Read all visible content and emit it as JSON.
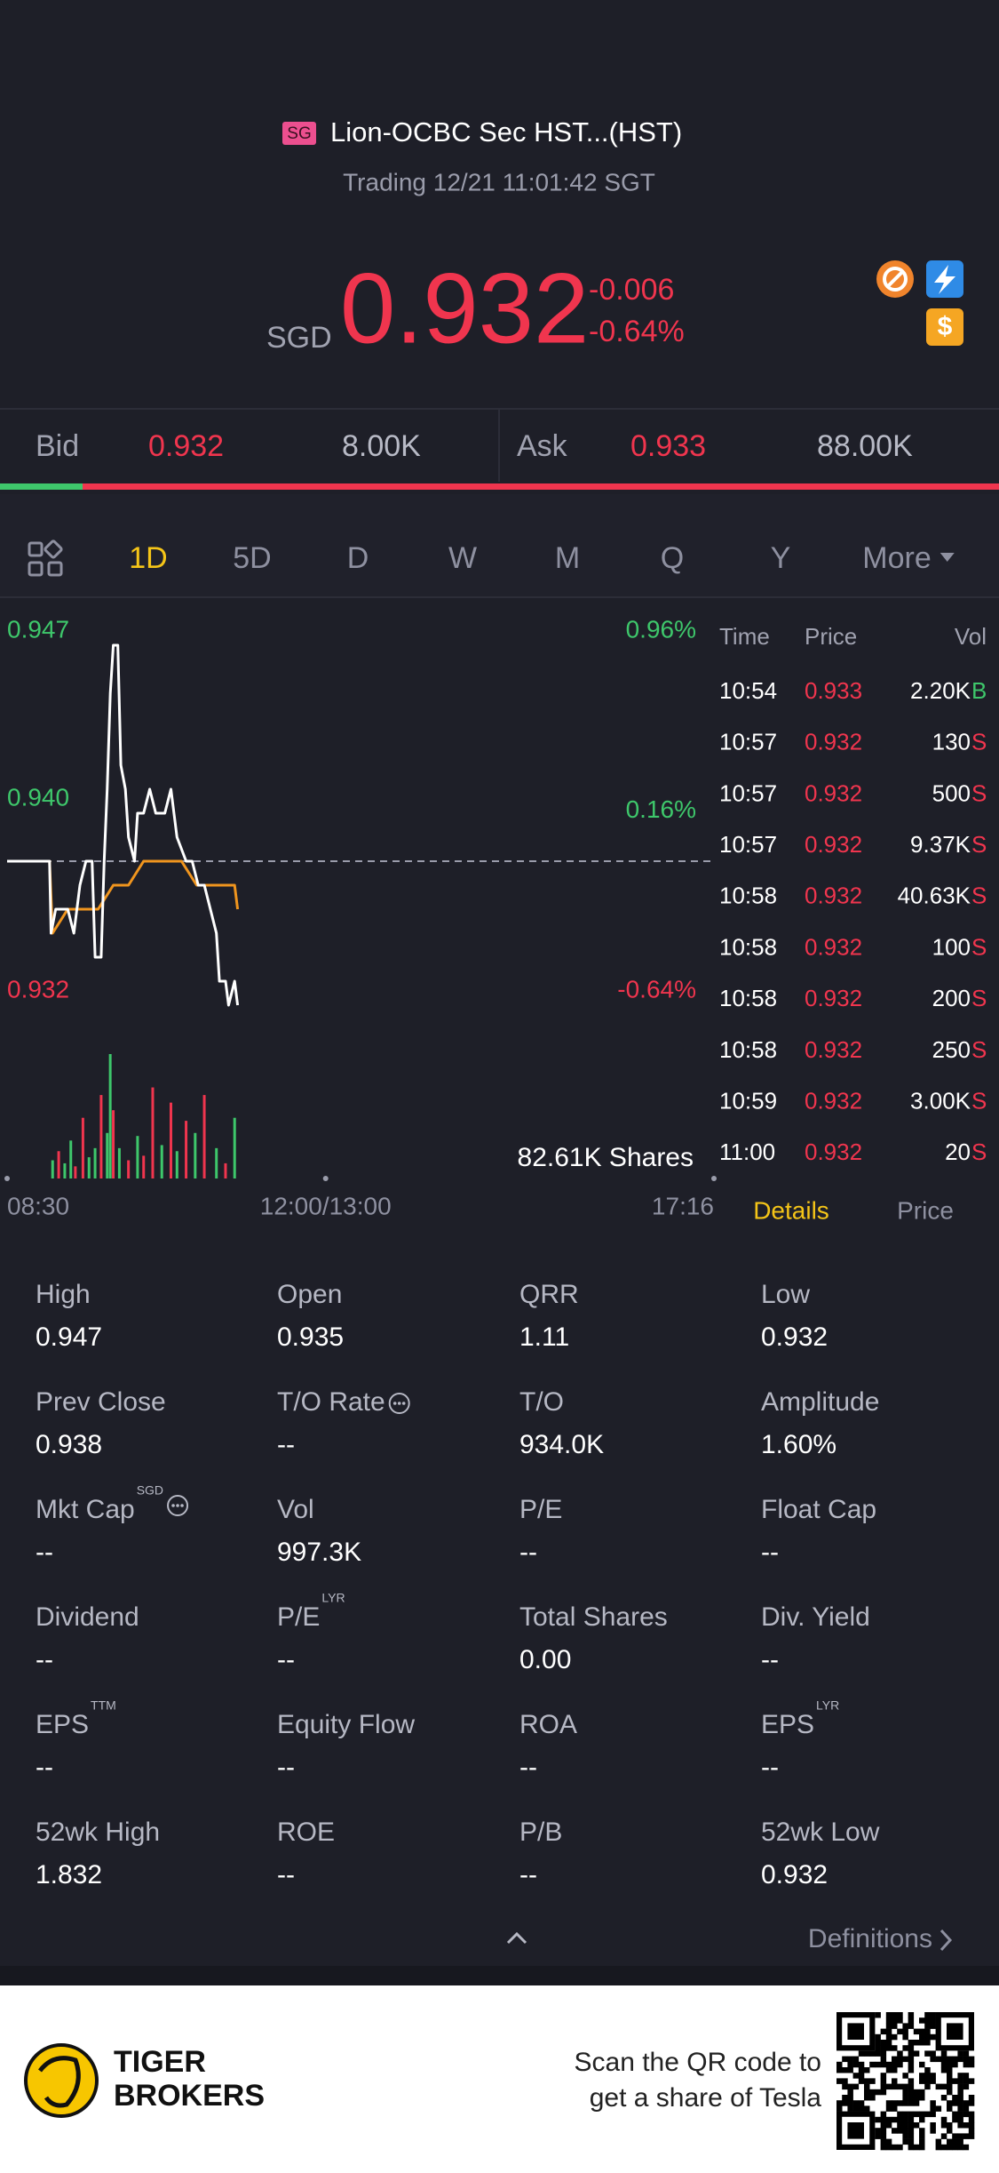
{
  "header": {
    "market_tag": "SG",
    "title": "Lion-OCBC Sec HST...(HST)",
    "status": "Trading 12/21 11:01:42 SGT"
  },
  "quote": {
    "currency": "SGD",
    "price": "0.932",
    "change": "-0.006",
    "change_pct": "-0.64%",
    "badge": "$"
  },
  "order_book": {
    "bid_label": "Bid",
    "bid_price": "0.932",
    "bid_size": "8.00K",
    "ask_label": "Ask",
    "ask_price": "0.933",
    "ask_size": "88.00K"
  },
  "tabs": {
    "items": [
      "1D",
      "5D",
      "D",
      "W",
      "M",
      "Q",
      "Y",
      "More"
    ],
    "active": 0
  },
  "chart_data": {
    "type": "line",
    "xlim": [
      0,
      466
    ],
    "xticks": [
      {
        "value": 0,
        "label": "08:30"
      },
      {
        "value": 210,
        "label": "12:00/13:00"
      },
      {
        "value": 466,
        "label": "17:16"
      }
    ],
    "ylim": [
      0.932,
      0.947
    ],
    "yticks": [
      0.947,
      {
        "value": 0.94,
        "label": "0.940"
      },
      0.932
    ],
    "y2lim": [
      -0.64,
      0.96
    ],
    "y2ticks": [
      {
        "value": 0.96,
        "label": "0.96%"
      },
      {
        "value": 0.16,
        "label": "0.16%"
      },
      {
        "value": -0.64,
        "label": "-0.64%"
      }
    ],
    "reference": 0.938,
    "up_color": "#3ec76b",
    "down_color": "#f0354e",
    "series": [
      {
        "color": "#ffffff",
        "x": [
          0,
          28,
          29,
          32,
          40,
          44,
          48,
          52,
          56,
          58,
          62,
          64,
          66,
          68,
          70,
          73,
          75,
          78,
          80,
          84,
          86,
          90,
          94,
          98,
          104,
          108,
          112,
          118,
          122,
          126,
          130,
          134,
          138,
          140,
          144,
          146,
          150,
          152
        ],
        "values": [
          0.938,
          0.938,
          0.935,
          0.936,
          0.936,
          0.935,
          0.937,
          0.938,
          0.938,
          0.934,
          0.934,
          0.938,
          0.941,
          0.945,
          0.947,
          0.947,
          0.942,
          0.941,
          0.939,
          0.938,
          0.94,
          0.94,
          0.941,
          0.94,
          0.94,
          0.941,
          0.939,
          0.938,
          0.938,
          0.937,
          0.937,
          0.936,
          0.935,
          0.933,
          0.933,
          0.932,
          0.933,
          0.932
        ]
      },
      {
        "color": "#f0951e",
        "x": [
          0,
          28,
          30,
          40,
          52,
          60,
          70,
          80,
          90,
          105,
          115,
          125,
          140,
          150,
          152
        ],
        "values": [
          0.938,
          0.938,
          0.935,
          0.936,
          0.936,
          0.936,
          0.937,
          0.937,
          0.938,
          0.938,
          0.938,
          0.937,
          0.937,
          0.937,
          0.936
        ]
      }
    ],
    "volume": {
      "x": [
        30,
        34,
        38,
        42,
        45,
        50,
        54,
        58,
        62,
        66,
        68,
        70,
        74,
        80,
        86,
        90,
        96,
        102,
        108,
        112,
        118,
        124,
        130,
        138,
        144,
        150
      ],
      "values": [
        12,
        18,
        10,
        25,
        8,
        40,
        14,
        20,
        55,
        30,
        82,
        45,
        20,
        12,
        28,
        15,
        60,
        22,
        50,
        18,
        38,
        30,
        55,
        20,
        10,
        40
      ],
      "colors": [
        "#3ec76b",
        "#f0354e",
        "#3ec76b",
        "#3ec76b",
        "#f0354e",
        "#f0354e",
        "#3ec76b",
        "#3ec76b",
        "#f0354e",
        "#3ec76b",
        "#3ec76b",
        "#f0354e",
        "#3ec76b",
        "#f0354e",
        "#3ec76b",
        "#f0354e",
        "#f0354e",
        "#3ec76b",
        "#f0354e",
        "#3ec76b",
        "#f0354e",
        "#3ec76b",
        "#f0354e",
        "#3ec76b",
        "#f0354e",
        "#3ec76b"
      ],
      "label": "82.61K Shares"
    }
  },
  "trades": {
    "columns": [
      "Time",
      "Price",
      "Vol"
    ],
    "price_color": "#f0354e",
    "side_colors": {
      "B": "#3ec76b",
      "S": "#f0354e"
    },
    "rows": [
      [
        "10:54",
        "0.933",
        "2.20K",
        "B"
      ],
      [
        "10:57",
        "0.932",
        "130",
        "S"
      ],
      [
        "10:57",
        "0.932",
        "500",
        "S"
      ],
      [
        "10:57",
        "0.932",
        "9.37K",
        "S"
      ],
      [
        "10:58",
        "0.932",
        "40.63K",
        "S"
      ],
      [
        "10:58",
        "0.932",
        "100",
        "S"
      ],
      [
        "10:58",
        "0.932",
        "200",
        "S"
      ],
      [
        "10:58",
        "0.932",
        "250",
        "S"
      ],
      [
        "10:59",
        "0.932",
        "3.00K",
        "S"
      ],
      [
        "11:00",
        "0.932",
        "20",
        "S"
      ]
    ]
  },
  "detail_tabs": {
    "items": [
      "Details",
      "Price"
    ],
    "active": 0
  },
  "stats": [
    {
      "label": "High",
      "value": "0.947"
    },
    {
      "label": "Open",
      "value": "0.935"
    },
    {
      "label": "QRR",
      "value": "1.11"
    },
    {
      "label": "Low",
      "value": "0.932"
    },
    {
      "label": "Prev Close",
      "value": "0.938"
    },
    {
      "label": "T/O Rate",
      "value": "--",
      "info": true
    },
    {
      "label": "T/O",
      "value": "934.0K"
    },
    {
      "label": "Amplitude",
      "value": "1.60%"
    },
    {
      "label": "Mkt Cap",
      "sup": "SGD",
      "value": "--",
      "info": true
    },
    {
      "label": "Vol",
      "value": "997.3K"
    },
    {
      "label": "P/E",
      "value": "--"
    },
    {
      "label": "Float Cap",
      "value": "--"
    },
    {
      "label": "Dividend",
      "value": "--"
    },
    {
      "label": "P/E",
      "sup": "LYR",
      "value": "--"
    },
    {
      "label": "Total Shares",
      "value": "0.00"
    },
    {
      "label": "Div. Yield",
      "value": "--"
    },
    {
      "label": "EPS",
      "sup": "TTM",
      "value": "--"
    },
    {
      "label": "Equity Flow",
      "value": "--"
    },
    {
      "label": "ROA",
      "value": "--"
    },
    {
      "label": "EPS",
      "sup": "LYR",
      "value": "--"
    },
    {
      "label": "52wk High",
      "value": "1.832"
    },
    {
      "label": "ROE",
      "value": "--"
    },
    {
      "label": "P/B",
      "value": "--"
    },
    {
      "label": "52wk Low",
      "value": "0.932"
    }
  ],
  "definitions": "Definitions",
  "footer": {
    "brand_1": "TIGER",
    "brand_2": "BROKERS",
    "line_1": "Scan the QR code to",
    "line_2": "get a share of Tesla"
  }
}
